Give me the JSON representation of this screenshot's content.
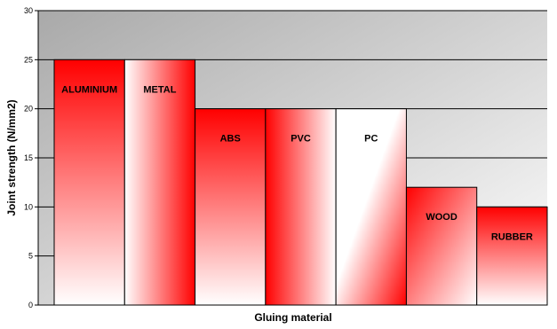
{
  "chart_data": {
    "type": "bar",
    "categories": [
      "ALUMINIUM",
      "METAL",
      "ABS",
      "PVC",
      "PC",
      "WOOD",
      "RUBBER"
    ],
    "values": [
      25,
      25,
      20,
      20,
      20,
      12,
      10
    ],
    "xlabel": "Gluing material",
    "ylabel": "Joint strength (N/mm2)",
    "ylim": [
      0,
      30
    ],
    "yticks": [
      0,
      5,
      10,
      15,
      20,
      25,
      30
    ],
    "grid": "horizontal",
    "legend": "none",
    "colors": {
      "bar_strong": "#ff0000",
      "bar_light": "#ffffff",
      "plot_dark": "#b0b0b0",
      "plot_light": "#ffffff"
    }
  }
}
